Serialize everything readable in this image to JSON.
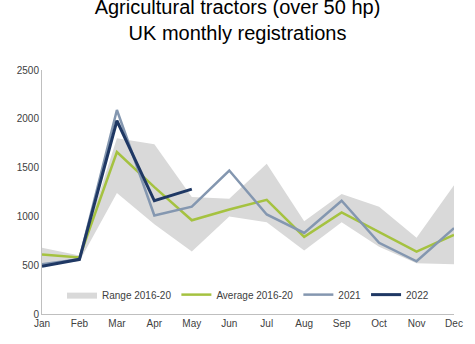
{
  "chart_data": {
    "type": "line",
    "title": "Agricultural tractors (over 50 hp)",
    "subtitle": "UK monthly registrations",
    "categories": [
      "Jan",
      "Feb",
      "Mar",
      "Apr",
      "May",
      "Jun",
      "Jul",
      "Aug",
      "Sep",
      "Oct",
      "Nov",
      "Dec"
    ],
    "series": [
      {
        "name": "Range 2016-20",
        "type": "band",
        "color": "#d9d9d9",
        "low": [
          500,
          540,
          1240,
          920,
          640,
          1000,
          940,
          650,
          940,
          690,
          520,
          510
        ],
        "high": [
          680,
          600,
          1800,
          1740,
          1200,
          1180,
          1540,
          950,
          1230,
          1100,
          780,
          1320
        ]
      },
      {
        "name": "Average 2016-20",
        "type": "line",
        "color": "#a5c240",
        "values": [
          610,
          580,
          1660,
          1300,
          960,
          1070,
          1170,
          790,
          1040,
          840,
          640,
          810
        ]
      },
      {
        "name": "2021",
        "type": "line",
        "color": "#8497b0",
        "values": [
          510,
          560,
          2090,
          1010,
          1100,
          1470,
          1020,
          830,
          1160,
          730,
          540,
          880
        ]
      },
      {
        "name": "2022",
        "type": "line",
        "color": "#1f3864",
        "values": [
          490,
          560,
          1980,
          1160,
          1280,
          null,
          null,
          null,
          null,
          null,
          null,
          null
        ]
      }
    ],
    "ylim": [
      0,
      2500
    ],
    "yticks": [
      0,
      500,
      1000,
      1500,
      2000,
      2500
    ],
    "grid": false,
    "legend": "bottom"
  }
}
